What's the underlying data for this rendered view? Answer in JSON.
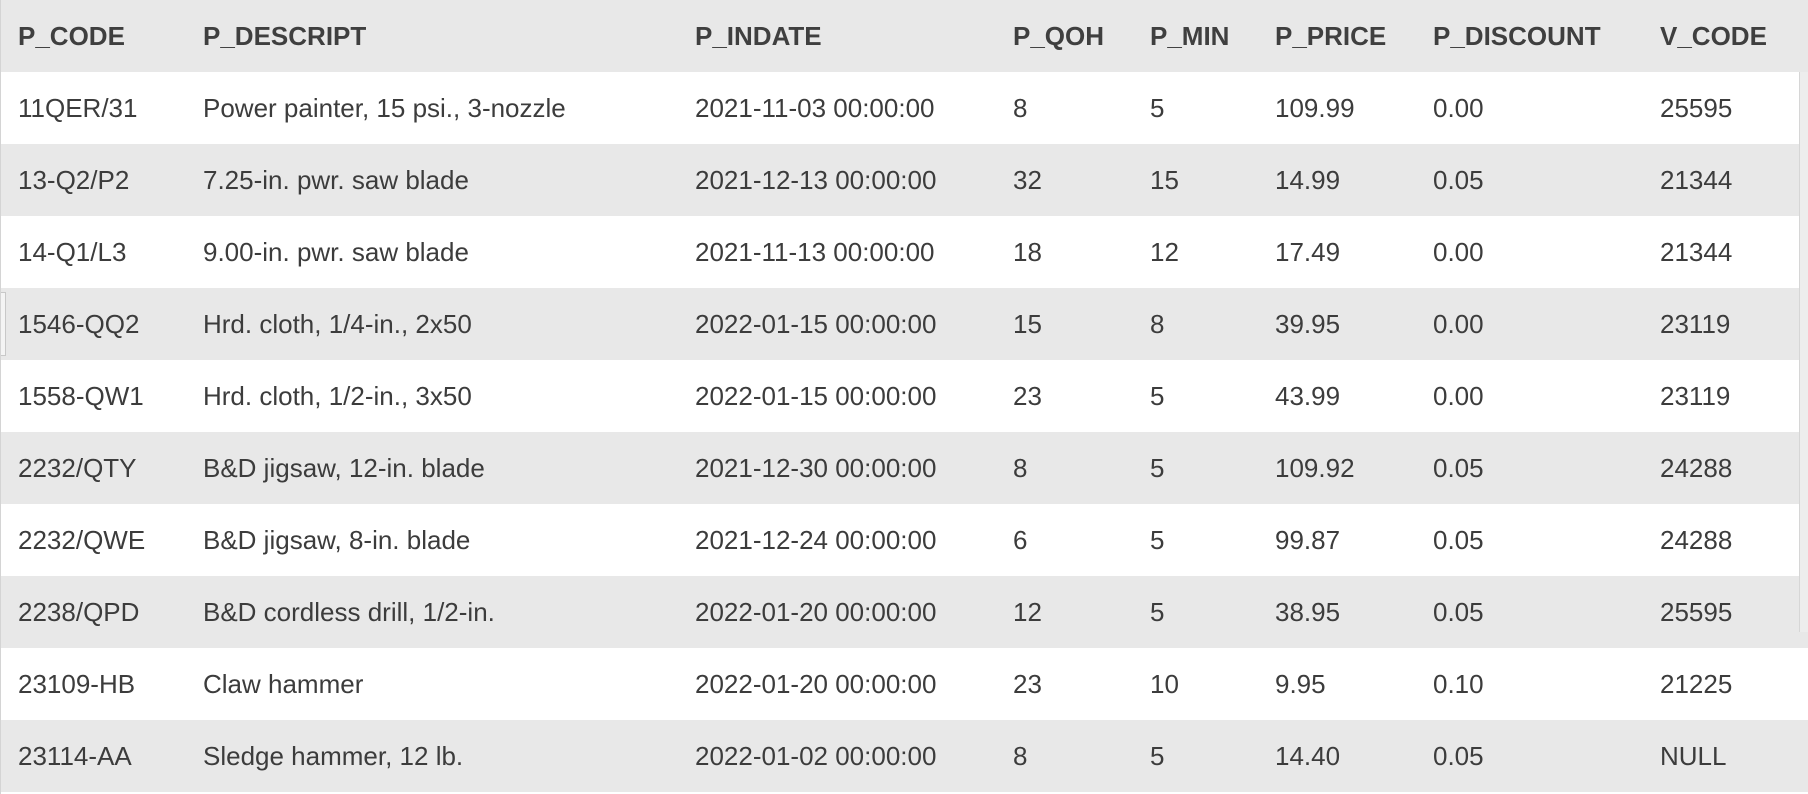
{
  "table": {
    "columns": [
      "P_CODE",
      "P_DESCRIPT",
      "P_INDATE",
      "P_QOH",
      "P_MIN",
      "P_PRICE",
      "P_DISCOUNT",
      "V_CODE"
    ],
    "rows": [
      [
        "11QER/31",
        "Power painter, 15 psi., 3-nozzle",
        "2021-11-03 00:00:00",
        "8",
        "5",
        "109.99",
        "0.00",
        "25595"
      ],
      [
        "13-Q2/P2",
        "7.25-in. pwr. saw blade",
        "2021-12-13 00:00:00",
        "32",
        "15",
        "14.99",
        "0.05",
        "21344"
      ],
      [
        "14-Q1/L3",
        "9.00-in. pwr. saw blade",
        "2021-11-13 00:00:00",
        "18",
        "12",
        "17.49",
        "0.00",
        "21344"
      ],
      [
        "1546-QQ2",
        "Hrd. cloth, 1/4-in., 2x50",
        "2022-01-15 00:00:00",
        "15",
        "8",
        "39.95",
        "0.00",
        "23119"
      ],
      [
        "1558-QW1",
        "Hrd. cloth, 1/2-in., 3x50",
        "2022-01-15 00:00:00",
        "23",
        "5",
        "43.99",
        "0.00",
        "23119"
      ],
      [
        "2232/QTY",
        "B&D jigsaw, 12-in. blade",
        "2021-12-30 00:00:00",
        "8",
        "5",
        "109.92",
        "0.05",
        "24288"
      ],
      [
        "2232/QWE",
        "B&D jigsaw, 8-in. blade",
        "2021-12-24 00:00:00",
        "6",
        "5",
        "99.87",
        "0.05",
        "24288"
      ],
      [
        "2238/QPD",
        "B&D cordless drill, 1/2-in.",
        "2022-01-20 00:00:00",
        "12",
        "5",
        "38.95",
        "0.05",
        "25595"
      ],
      [
        "23109-HB",
        "Claw hammer",
        "2022-01-20 00:00:00",
        "23",
        "10",
        "9.95",
        "0.10",
        "21225"
      ],
      [
        "23114-AA",
        "Sledge hammer, 12 lb.",
        "2022-01-02 00:00:00",
        "8",
        "5",
        "14.40",
        "0.05",
        "NULL"
      ]
    ]
  },
  "colors": {
    "header_bg": "#e8e8e8",
    "stripe_bg": "#e8e8e8",
    "row_bg": "#ffffff",
    "text": "#3c3c3c"
  }
}
